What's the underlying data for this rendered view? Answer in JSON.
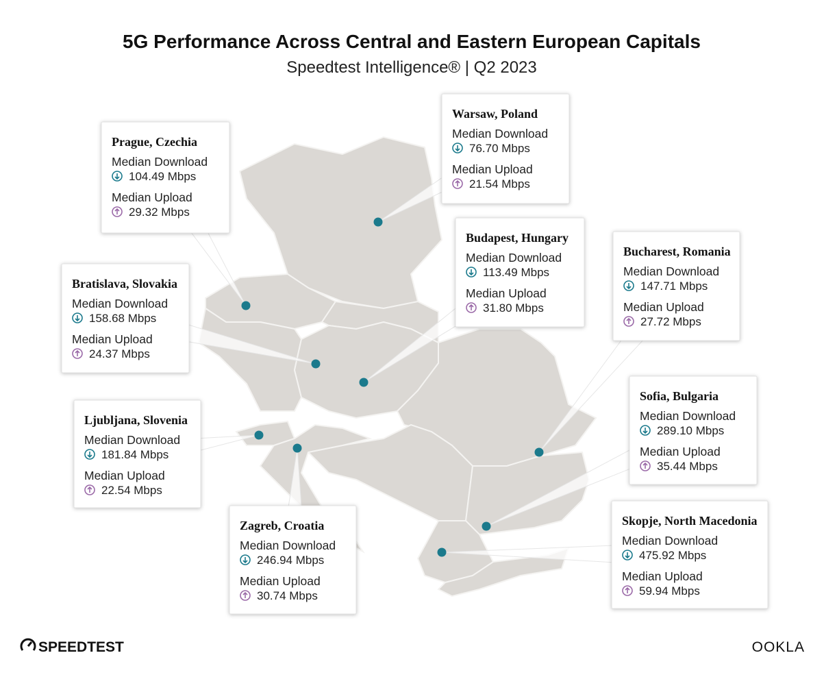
{
  "header": {
    "title": "5G Performance Across Central and Eastern European Capitals",
    "subtitle": "Speedtest Intelligence® | Q2 2023"
  },
  "cities": [
    {
      "name": "Prague, Czechia",
      "download_label": "Median Download",
      "download": "104.49 Mbps",
      "upload_label": "Median Upload",
      "upload": "29.32 Mbps"
    },
    {
      "name": "Warsaw, Poland",
      "download_label": "Median Download",
      "download": "76.70 Mbps",
      "upload_label": "Median Upload",
      "upload": "21.54 Mbps"
    },
    {
      "name": "Bratislava, Slovakia",
      "download_label": "Median Download",
      "download": "158.68 Mbps",
      "upload_label": "Median Upload",
      "upload": "24.37 Mbps"
    },
    {
      "name": "Budapest, Hungary",
      "download_label": "Median Download",
      "download": "113.49 Mbps",
      "upload_label": "Median Upload",
      "upload": "31.80 Mbps"
    },
    {
      "name": "Bucharest, Romania",
      "download_label": "Median Download",
      "download": "147.71 Mbps",
      "upload_label": "Median Upload",
      "upload": "27.72 Mbps"
    },
    {
      "name": "Ljubljana, Slovenia",
      "download_label": "Median Download",
      "download": "181.84 Mbps",
      "upload_label": "Median Upload",
      "upload": "22.54 Mbps"
    },
    {
      "name": "Zagreb, Croatia",
      "download_label": "Median Download",
      "download": "246.94 Mbps",
      "upload_label": "Median Upload",
      "upload": "30.74 Mbps"
    },
    {
      "name": "Sofia, Bulgaria",
      "download_label": "Median Download",
      "download": "289.10 Mbps",
      "upload_label": "Median Upload",
      "upload": "35.44 Mbps"
    },
    {
      "name": "Skopje, North Macedonia",
      "download_label": "Median Download",
      "download": "475.92 Mbps",
      "upload_label": "Median Upload",
      "upload": "59.94 Mbps"
    }
  ],
  "footer": {
    "left_brand": "SPEEDTEST",
    "right_brand": "OOKLA"
  }
}
